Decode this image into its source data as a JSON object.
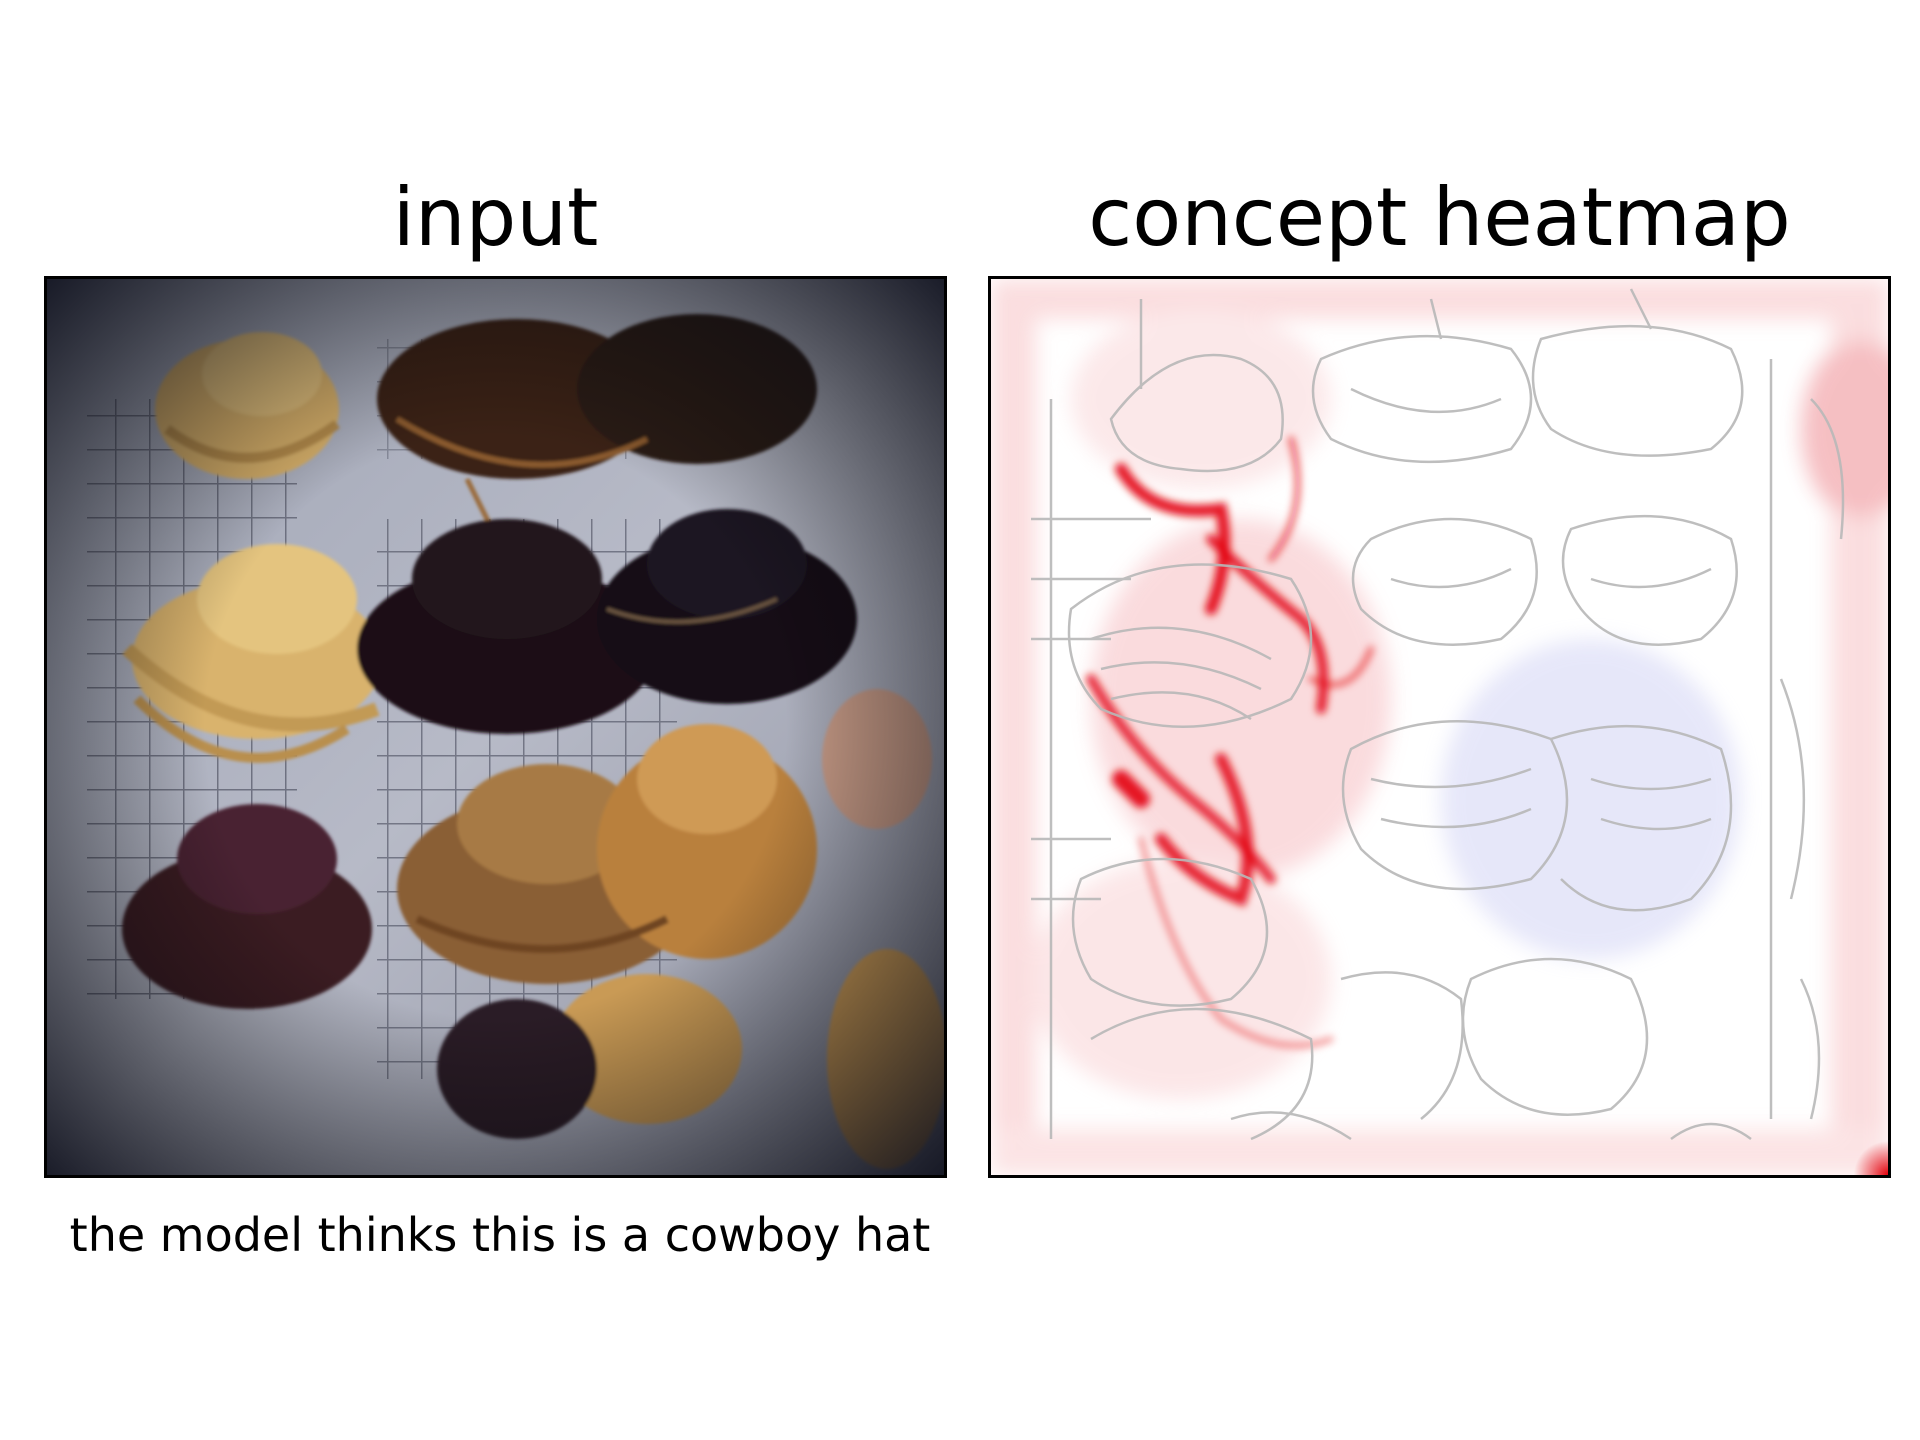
{
  "figure": {
    "left_panel": {
      "title": "input",
      "image_subject": "photo of many cowboy hats hanging on a white wire grid rack, vignetted edges"
    },
    "right_panel": {
      "title": "concept heatmap",
      "colormap": {
        "positive": "#e3000b",
        "neutral": "#ffffff",
        "negative": "#6b6bd6",
        "edges": "#b8b8b8"
      }
    },
    "caption": "the model thinks this is a cowboy hat"
  }
}
